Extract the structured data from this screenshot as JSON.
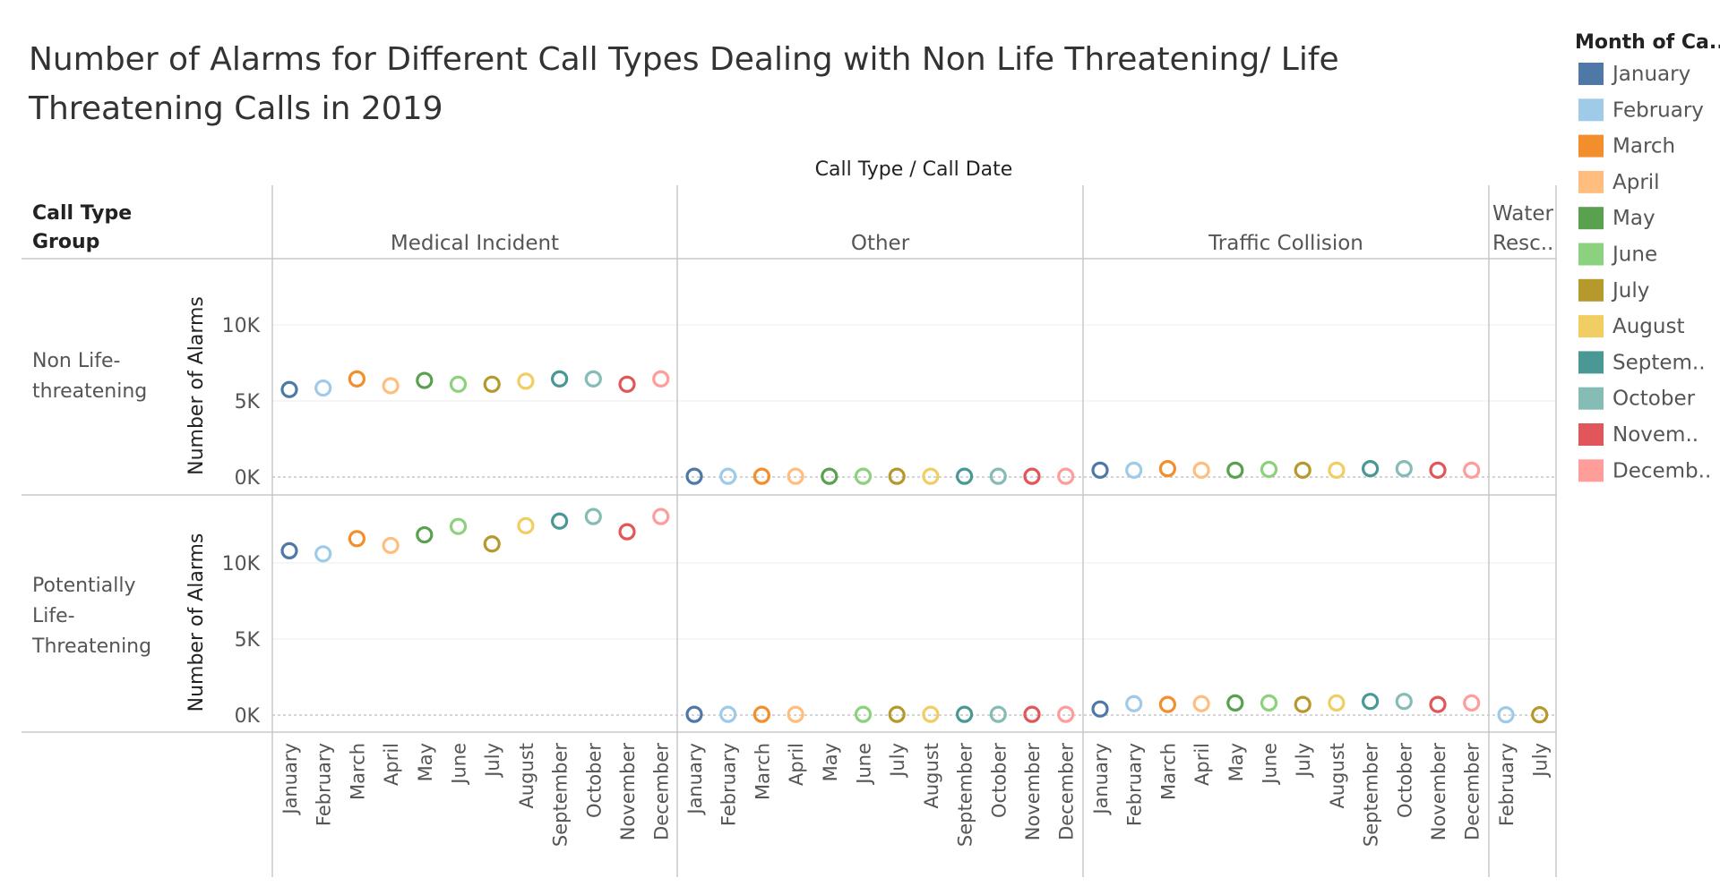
{
  "chart_data": {
    "type": "scatter",
    "title": "Number of Alarms for Different Call Types Dealing with Non Life Threatening/ Life Threatening Calls in 2019",
    "title_lines": [
      "Number of Alarms for Different Call Types Dealing with Non Life Threatening/ Life",
      "Threatening Calls in 2019"
    ],
    "column_header": "Call Type  /  Call Date",
    "row_group_header": [
      "Call Type",
      "Group"
    ],
    "ylabel": "Number of Alarms",
    "yticks": [
      {
        "value": 0,
        "label": "0K"
      },
      {
        "value": 5000,
        "label": "5K"
      },
      {
        "value": 10000,
        "label": "10K"
      }
    ],
    "ylim": [
      0,
      14000
    ],
    "legend": {
      "title": "Month of Ca..",
      "placement": "right",
      "items": [
        {
          "month": "January",
          "label": "January",
          "color": "#4e79a7"
        },
        {
          "month": "February",
          "label": "February",
          "color": "#a0cbe8"
        },
        {
          "month": "March",
          "label": "March",
          "color": "#f28e2b"
        },
        {
          "month": "April",
          "label": "April",
          "color": "#ffbe7d"
        },
        {
          "month": "May",
          "label": "May",
          "color": "#59a14f"
        },
        {
          "month": "June",
          "label": "June",
          "color": "#8cd17d"
        },
        {
          "month": "July",
          "label": "July",
          "color": "#b6992d"
        },
        {
          "month": "August",
          "label": "August",
          "color": "#f1ce63"
        },
        {
          "month": "September",
          "label": "Septem..",
          "color": "#499894"
        },
        {
          "month": "October",
          "label": "October",
          "color": "#86bcb6"
        },
        {
          "month": "November",
          "label": "Novem..",
          "color": "#e15759"
        },
        {
          "month": "December",
          "label": "Decemb..",
          "color": "#ff9d9a"
        }
      ]
    },
    "rows": [
      {
        "group": "Non Life-threatening",
        "label_lines": [
          "Non Life-",
          "threatening"
        ]
      },
      {
        "group": "Potentially Life-Threatening",
        "label_lines": [
          "Potentially",
          "Life-",
          "Threatening"
        ]
      }
    ],
    "columns": [
      {
        "call_type": "Medical Incident",
        "label_lines": [
          "Medical Incident"
        ],
        "months": [
          "January",
          "February",
          "March",
          "April",
          "May",
          "June",
          "July",
          "August",
          "September",
          "October",
          "November",
          "December"
        ],
        "values": [
          [
            5750,
            5850,
            6450,
            6000,
            6350,
            6100,
            6100,
            6300,
            6450,
            6450,
            6100,
            6450
          ],
          [
            10800,
            10600,
            11600,
            11150,
            11850,
            12400,
            11250,
            12450,
            12750,
            13050,
            12050,
            13050
          ]
        ]
      },
      {
        "call_type": "Other",
        "label_lines": [
          "Other"
        ],
        "months": [
          "January",
          "February",
          "March",
          "April",
          "May",
          "June",
          "July",
          "August",
          "September",
          "October",
          "November",
          "December"
        ],
        "values": [
          [
            50,
            50,
            50,
            50,
            50,
            50,
            50,
            50,
            50,
            50,
            50,
            50
          ],
          [
            50,
            50,
            50,
            50,
            null,
            50,
            50,
            50,
            50,
            50,
            50,
            50
          ]
        ]
      },
      {
        "call_type": "Traffic Collision",
        "label_lines": [
          "Traffic Collision"
        ],
        "months": [
          "January",
          "February",
          "March",
          "April",
          "May",
          "June",
          "July",
          "August",
          "September",
          "October",
          "November",
          "December"
        ],
        "values": [
          [
            450,
            450,
            550,
            450,
            450,
            500,
            450,
            450,
            550,
            550,
            450,
            450
          ],
          [
            400,
            750,
            700,
            750,
            800,
            800,
            700,
            800,
            900,
            900,
            700,
            800
          ]
        ]
      },
      {
        "call_type": "Water Rescue",
        "label_lines": [
          "Water",
          "Resc.."
        ],
        "months": [
          "February",
          "July"
        ],
        "values": [
          [
            null,
            null
          ],
          [
            20,
            20
          ]
        ]
      }
    ],
    "grid": true
  }
}
